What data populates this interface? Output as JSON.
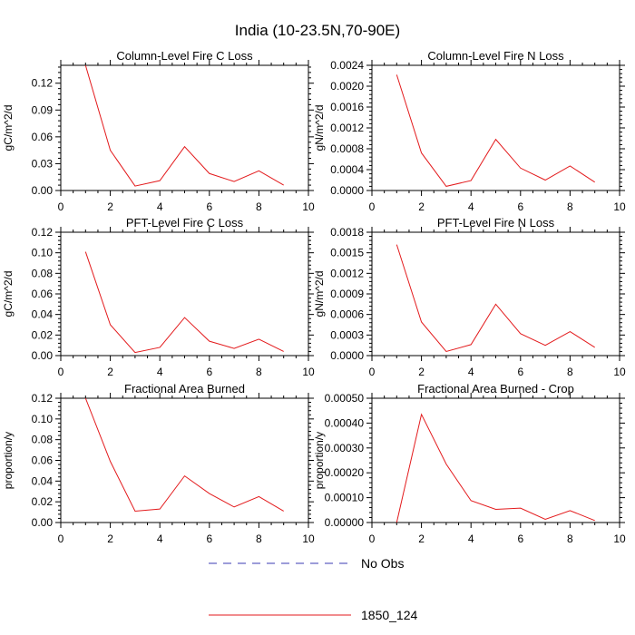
{
  "figure": {
    "title": "India (10-23.5N,70-90E)"
  },
  "legend": {
    "items": [
      {
        "label": "No Obs",
        "color": "#3b3bb3",
        "dashed": true
      },
      {
        "label": "1850_124",
        "color": "#e31a1c",
        "dashed": false
      }
    ]
  },
  "chart_data": [
    {
      "type": "line",
      "title": "Column-Level Fire C Loss",
      "ylabel": "gC/m^2/d",
      "xlim": [
        0,
        10
      ],
      "ylim": [
        0,
        0.14
      ],
      "xticks": [
        "0",
        "2",
        "4",
        "6",
        "8",
        "10"
      ],
      "yticks": [
        "0.00",
        "0.03",
        "0.06",
        "0.09",
        "0.12"
      ],
      "ytick_values": [
        0,
        0.03,
        0.06,
        0.09,
        0.12
      ],
      "series": [
        {
          "name": "1850_124",
          "color": "#e31a1c",
          "x": [
            1,
            2,
            3,
            4,
            5,
            6,
            7,
            8,
            9
          ],
          "values": [
            0.14,
            0.045,
            0.005,
            0.011,
            0.049,
            0.019,
            0.01,
            0.022,
            0.006
          ]
        }
      ]
    },
    {
      "type": "line",
      "title": "Column-Level Fire N Loss",
      "ylabel": "gN/m^2/d",
      "xlim": [
        0,
        10
      ],
      "ylim": [
        0,
        0.0024
      ],
      "xticks": [
        "0",
        "2",
        "4",
        "6",
        "8",
        "10"
      ],
      "yticks": [
        "0.0000",
        "0.0004",
        "0.0008",
        "0.0012",
        "0.0016",
        "0.0020",
        "0.0024"
      ],
      "ytick_values": [
        0,
        0.0004,
        0.0008,
        0.0012,
        0.0016,
        0.002,
        0.0024
      ],
      "series": [
        {
          "name": "1850_124",
          "color": "#e31a1c",
          "x": [
            1,
            2,
            3,
            4,
            5,
            6,
            7,
            8,
            9
          ],
          "values": [
            0.00222,
            0.00072,
            8e-05,
            0.00019,
            0.00098,
            0.00043,
            0.0002,
            0.00047,
            0.00016
          ]
        }
      ]
    },
    {
      "type": "line",
      "title": "PFT-Level Fire C Loss",
      "ylabel": "gC/m^2/d",
      "xlim": [
        0,
        10
      ],
      "ylim": [
        0,
        0.12
      ],
      "xticks": [
        "0",
        "2",
        "4",
        "6",
        "8",
        "10"
      ],
      "yticks": [
        "0.00",
        "0.02",
        "0.04",
        "0.06",
        "0.08",
        "0.10",
        "0.12"
      ],
      "ytick_values": [
        0,
        0.02,
        0.04,
        0.06,
        0.08,
        0.1,
        0.12
      ],
      "series": [
        {
          "name": "1850_124",
          "color": "#e31a1c",
          "x": [
            1,
            2,
            3,
            4,
            5,
            6,
            7,
            8,
            9
          ],
          "values": [
            0.101,
            0.03,
            0.003,
            0.008,
            0.037,
            0.014,
            0.007,
            0.016,
            0.004
          ]
        }
      ]
    },
    {
      "type": "line",
      "title": "PFT-Level Fire N Loss",
      "ylabel": "gN/m^2/d",
      "xlim": [
        0,
        10
      ],
      "ylim": [
        0,
        0.0018
      ],
      "xticks": [
        "0",
        "2",
        "4",
        "6",
        "8",
        "10"
      ],
      "yticks": [
        "0.0000",
        "0.0003",
        "0.0006",
        "0.0009",
        "0.0012",
        "0.0015",
        "0.0018"
      ],
      "ytick_values": [
        0,
        0.0003,
        0.0006,
        0.0009,
        0.0012,
        0.0015,
        0.0018
      ],
      "series": [
        {
          "name": "1850_124",
          "color": "#e31a1c",
          "x": [
            1,
            2,
            3,
            4,
            5,
            6,
            7,
            8,
            9
          ],
          "values": [
            0.00162,
            0.00049,
            6e-05,
            0.00016,
            0.00075,
            0.00032,
            0.00015,
            0.00035,
            0.00012
          ]
        }
      ]
    },
    {
      "type": "line",
      "title": "Fractional Area Burned",
      "ylabel": "proportion/y",
      "xlim": [
        0,
        10
      ],
      "ylim": [
        0,
        0.12
      ],
      "xticks": [
        "0",
        "2",
        "4",
        "6",
        "8",
        "10"
      ],
      "yticks": [
        "0.00",
        "0.02",
        "0.04",
        "0.06",
        "0.08",
        "0.10",
        "0.12"
      ],
      "ytick_values": [
        0,
        0.02,
        0.04,
        0.06,
        0.08,
        0.1,
        0.12
      ],
      "series": [
        {
          "name": "1850_124",
          "color": "#e31a1c",
          "x": [
            1,
            2,
            3,
            4,
            5,
            6,
            7,
            8,
            9
          ],
          "values": [
            0.12,
            0.059,
            0.011,
            0.013,
            0.045,
            0.028,
            0.015,
            0.025,
            0.011
          ]
        }
      ]
    },
    {
      "type": "line",
      "title": "Fractional Area Burned - Crop",
      "ylabel": "proportion/y",
      "xlim": [
        0,
        10
      ],
      "ylim": [
        0,
        0.0005
      ],
      "xticks": [
        "0",
        "2",
        "4",
        "6",
        "8",
        "10"
      ],
      "yticks": [
        "0.00000",
        "0.00010",
        "0.00020",
        "0.00030",
        "0.00040",
        "0.00050"
      ],
      "ytick_values": [
        0,
        0.0001,
        0.0002,
        0.0003,
        0.0004,
        0.0005
      ],
      "series": [
        {
          "name": "1850_124",
          "color": "#e31a1c",
          "x": [
            1,
            2,
            3,
            4,
            5,
            6,
            7,
            8,
            9
          ],
          "values": [
            0.0,
            0.000435,
            0.000235,
            8.8e-05,
            5.3e-05,
            5.8e-05,
            1.3e-05,
            4.8e-05,
            8e-06
          ]
        }
      ]
    }
  ]
}
